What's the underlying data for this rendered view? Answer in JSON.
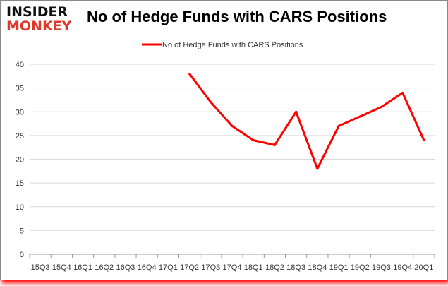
{
  "logo": {
    "line1": "INSIDER",
    "line2": "MONKEY"
  },
  "chart_data": {
    "type": "line",
    "title": "No of Hedge Funds with CARS Positions",
    "categories": [
      "15Q3",
      "15Q4",
      "16Q1",
      "16Q2",
      "16Q3",
      "16Q4",
      "17Q1",
      "17Q2",
      "17Q3",
      "17Q4",
      "18Q1",
      "18Q2",
      "18Q3",
      "18Q4",
      "19Q1",
      "19Q2",
      "19Q3",
      "19Q4",
      "20Q1"
    ],
    "series": [
      {
        "name": "No of Hedge Funds with CARS Positions",
        "color": "#ff0000",
        "values": [
          null,
          null,
          null,
          null,
          null,
          null,
          null,
          38,
          32,
          27,
          24,
          23,
          30,
          18,
          27,
          29,
          31,
          34,
          24
        ]
      }
    ],
    "ylim": [
      0,
      40
    ],
    "yticks": [
      0,
      5,
      10,
      15,
      20,
      25,
      30,
      35,
      40
    ],
    "grid": true,
    "legend": "top"
  }
}
